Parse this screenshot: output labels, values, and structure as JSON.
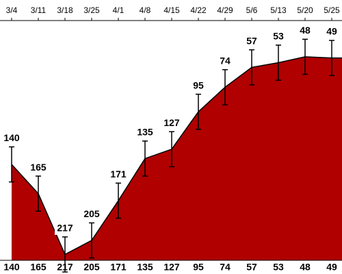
{
  "chart_data": {
    "type": "area",
    "categories": [
      "3/4",
      "3/11",
      "3/18",
      "3/25",
      "4/1",
      "4/8",
      "4/15",
      "4/22",
      "4/29",
      "5/6",
      "5/13",
      "5/20",
      "5/25"
    ],
    "values": [
      140,
      165,
      217,
      205,
      171,
      135,
      127,
      95,
      74,
      57,
      53,
      48,
      49
    ],
    "errors": [
      15,
      15,
      15,
      15,
      15,
      15,
      15,
      15,
      15,
      15,
      15,
      15,
      15
    ],
    "color": "#b00000",
    "ylim": [
      222,
      17
    ]
  }
}
